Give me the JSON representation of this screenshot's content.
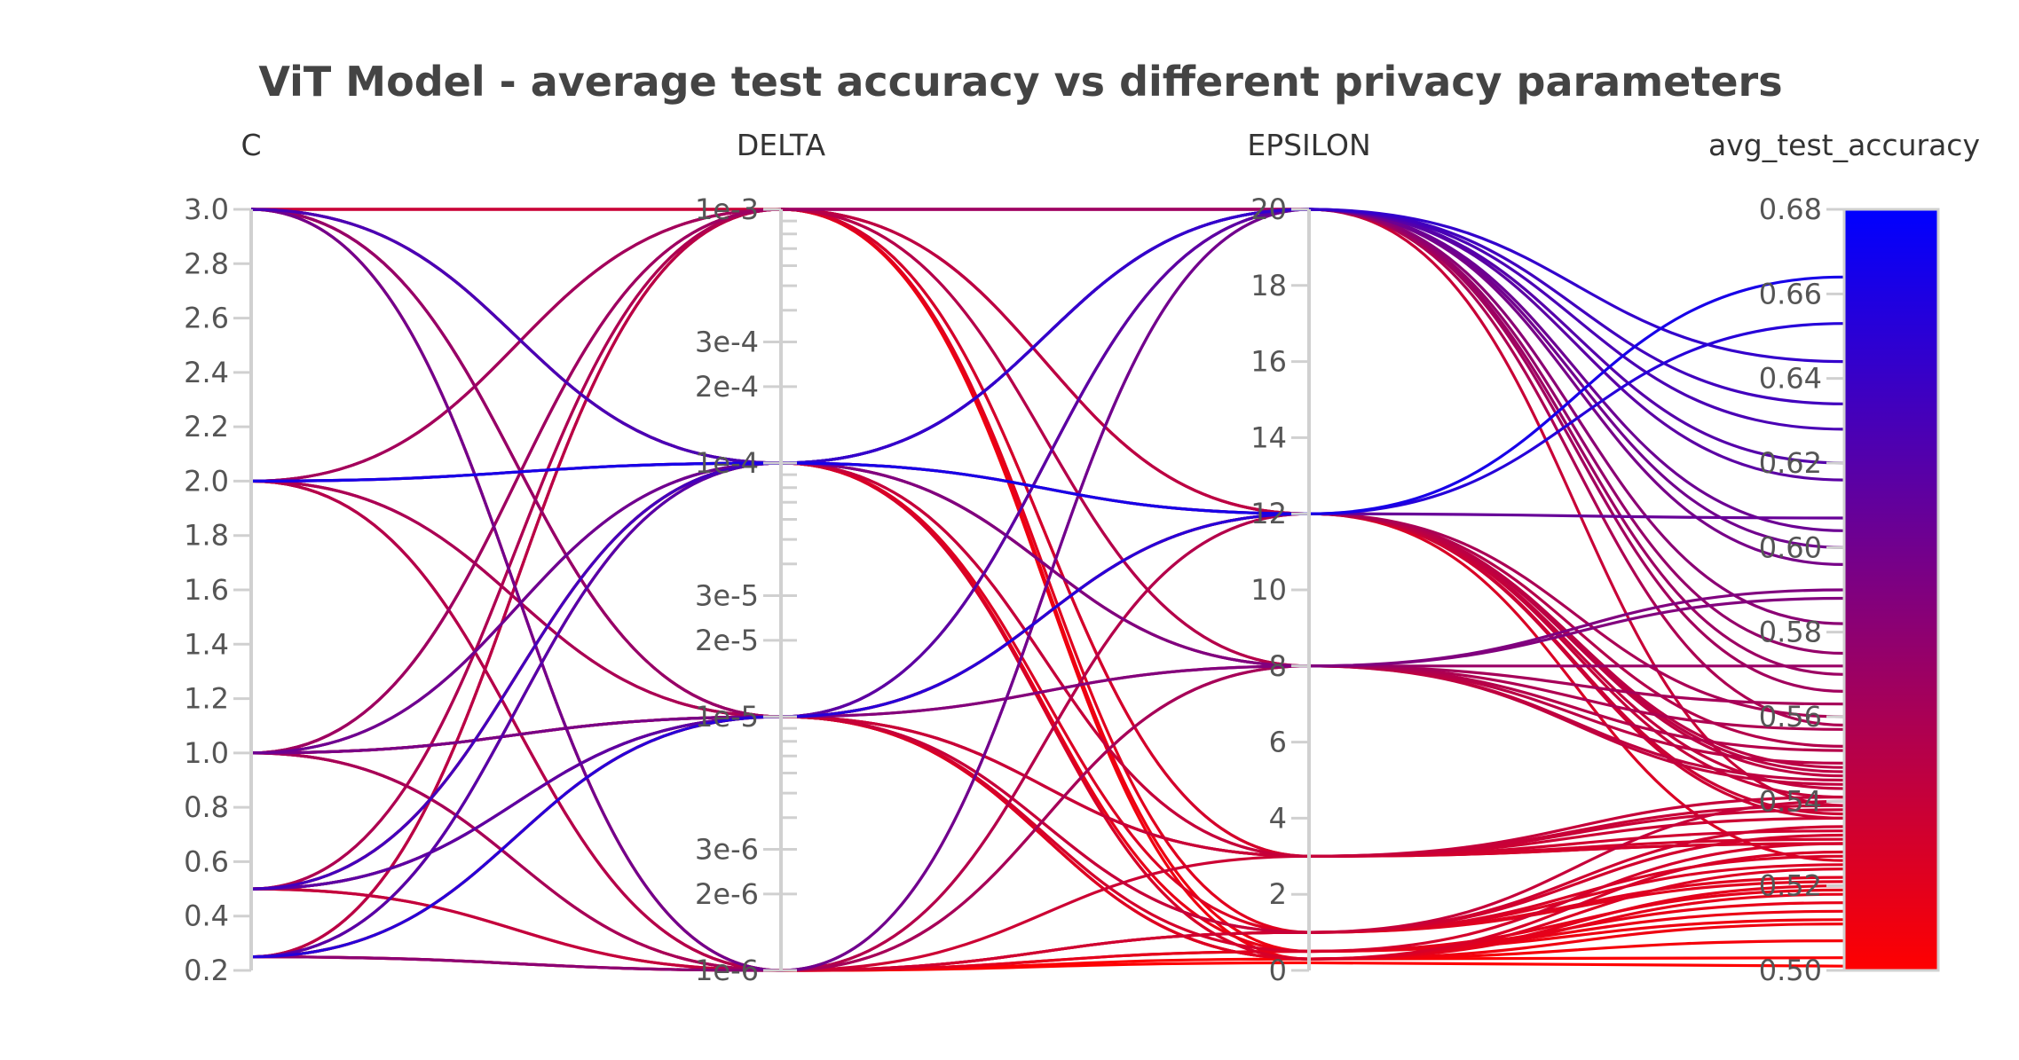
{
  "chart_data": {
    "type": "parallel_coordinates",
    "title": "ViT Model - average test accuracy vs different privacy parameters",
    "axes": [
      {
        "name": "C",
        "label": "C",
        "scale": "linear",
        "range": [
          0.2,
          3.0
        ],
        "ticks": [
          "0.2",
          "0.4",
          "0.6",
          "0.8",
          "1.0",
          "1.2",
          "1.4",
          "1.6",
          "1.8",
          "2.0",
          "2.2",
          "2.4",
          "2.6",
          "2.8",
          "3.0"
        ]
      },
      {
        "name": "DELTA",
        "label": "DELTA",
        "scale": "log",
        "range": [
          1e-06,
          0.001
        ],
        "ticks": [
          "1e-6",
          "2e-6",
          "3e-6",
          "1e-5",
          "2e-5",
          "3e-5",
          "1e-4",
          "2e-4",
          "3e-4",
          "1e-3"
        ]
      },
      {
        "name": "EPSILON",
        "label": "EPSILON",
        "scale": "linear",
        "range": [
          0,
          20
        ],
        "ticks": [
          "0",
          "2",
          "4",
          "6",
          "8",
          "10",
          "12",
          "14",
          "16",
          "18",
          "20"
        ]
      },
      {
        "name": "avg_test_accuracy",
        "label": "avg_test_accuracy",
        "scale": "linear",
        "range": [
          0.5,
          0.68
        ],
        "ticks": [
          "0.50",
          "0.52",
          "0.54",
          "0.56",
          "0.58",
          "0.60",
          "0.62",
          "0.64",
          "0.66",
          "0.68"
        ]
      }
    ],
    "colorscale": {
      "low": "#ff0000",
      "high": "#0000ff",
      "range": [
        0.5,
        0.68
      ]
    },
    "records": [
      [
        3.0,
        0.001,
        20,
        0.539
      ],
      [
        3.0,
        0.001,
        12,
        0.526
      ],
      [
        3.0,
        0.0001,
        20,
        0.628
      ],
      [
        3.0,
        0.0001,
        12,
        0.607
      ],
      [
        3.0,
        0.0001,
        8,
        0.59
      ],
      [
        3.0,
        1e-05,
        20,
        0.575
      ],
      [
        3.0,
        1e-05,
        12,
        0.548
      ],
      [
        3.0,
        1e-05,
        3,
        0.531
      ],
      [
        3.0,
        1e-06,
        1,
        0.527
      ],
      [
        3.0,
        1e-06,
        0.5,
        0.519
      ],
      [
        3.0,
        0.0001,
        3,
        0.541
      ],
      [
        3.0,
        1e-05,
        0.3,
        0.524
      ],
      [
        2.0,
        0.001,
        20,
        0.566
      ],
      [
        2.0,
        0.001,
        8,
        0.552
      ],
      [
        2.0,
        0.0001,
        12,
        0.664
      ],
      [
        2.0,
        0.0001,
        20,
        0.644
      ],
      [
        2.0,
        1e-05,
        12,
        0.56
      ],
      [
        2.0,
        1e-05,
        8,
        0.545
      ],
      [
        2.0,
        1e-06,
        3,
        0.536
      ],
      [
        2.0,
        1e-06,
        1,
        0.522
      ],
      [
        2.0,
        1e-05,
        0.5,
        0.53
      ],
      [
        2.0,
        0.0001,
        0.3,
        0.528
      ],
      [
        1.0,
        0.001,
        12,
        0.541
      ],
      [
        1.0,
        0.001,
        0.5,
        0.512
      ],
      [
        1.0,
        0.0001,
        20,
        0.604
      ],
      [
        1.0,
        0.0001,
        8,
        0.572
      ],
      [
        1.0,
        1e-05,
        20,
        0.596
      ],
      [
        1.0,
        1e-05,
        12,
        0.537
      ],
      [
        1.0,
        1e-05,
        3,
        0.533
      ],
      [
        1.0,
        1e-06,
        8,
        0.563
      ],
      [
        1.0,
        1e-06,
        0.5,
        0.514
      ],
      [
        1.0,
        1e-05,
        1,
        0.54
      ],
      [
        1.0,
        0.0001,
        0.3,
        0.52
      ],
      [
        0.5,
        0.001,
        20,
        0.558
      ],
      [
        0.5,
        0.001,
        3,
        0.53
      ],
      [
        0.5,
        0.0001,
        12,
        0.536
      ],
      [
        0.5,
        0.0001,
        1,
        0.525
      ],
      [
        0.5,
        1e-05,
        8,
        0.588
      ],
      [
        0.5,
        1e-05,
        20,
        0.616
      ],
      [
        0.5,
        1e-05,
        0.3,
        0.507
      ],
      [
        0.5,
        1e-06,
        12,
        0.543
      ],
      [
        0.5,
        1e-06,
        0.3,
        0.503
      ],
      [
        0.5,
        0.0001,
        3,
        0.538
      ],
      [
        0.25,
        0.001,
        8,
        0.549
      ],
      [
        0.25,
        0.001,
        1,
        0.521
      ],
      [
        0.25,
        0.0001,
        20,
        0.62
      ],
      [
        0.25,
        0.0001,
        0.5,
        0.516
      ],
      [
        0.25,
        1e-05,
        12,
        0.653
      ],
      [
        0.25,
        1e-05,
        3,
        0.539
      ],
      [
        0.25,
        1e-05,
        1,
        0.532
      ],
      [
        0.25,
        1e-06,
        20,
        0.582
      ],
      [
        0.25,
        1e-06,
        0.2,
        0.501
      ],
      [
        0.25,
        1e-06,
        8,
        0.544
      ],
      [
        0.25,
        1e-05,
        0.3,
        0.518
      ],
      [
        3.0,
        0.001,
        3,
        0.53
      ],
      [
        2.0,
        1e-06,
        12,
        0.553
      ],
      [
        1.0,
        0.001,
        20,
        0.57
      ],
      [
        0.5,
        1e-05,
        12,
        0.546
      ],
      [
        0.25,
        0.0001,
        8,
        0.557
      ],
      [
        3.0,
        1e-06,
        20,
        0.6
      ],
      [
        2.0,
        0.001,
        0.3,
        0.511
      ],
      [
        1.0,
        1e-06,
        1,
        0.534
      ],
      [
        0.5,
        0.0001,
        20,
        0.634
      ],
      [
        0.25,
        0.001,
        12,
        0.547
      ]
    ]
  }
}
